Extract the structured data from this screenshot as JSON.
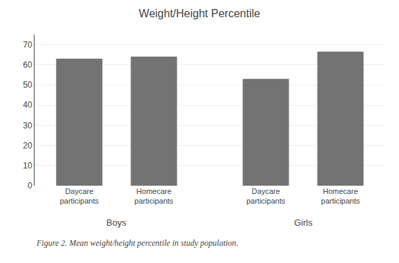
{
  "chart_data": {
    "type": "bar",
    "title": "Weight/Height Percentile",
    "categories": [
      "Daycare\nparticipants",
      "Homecare\nparticipants",
      "Daycare\nparticipants",
      "Homecare\nparticipants"
    ],
    "groups": [
      "Boys",
      "Boys",
      "Girls",
      "Girls"
    ],
    "values": [
      63,
      64,
      53,
      66.5
    ],
    "color": "#737373",
    "ylim": [
      0,
      75
    ],
    "yticks": [
      0,
      10,
      20,
      30,
      40,
      50,
      60,
      70
    ],
    "grid": true,
    "caption": "Figure 2. Mean weight/height percentile in study population."
  }
}
